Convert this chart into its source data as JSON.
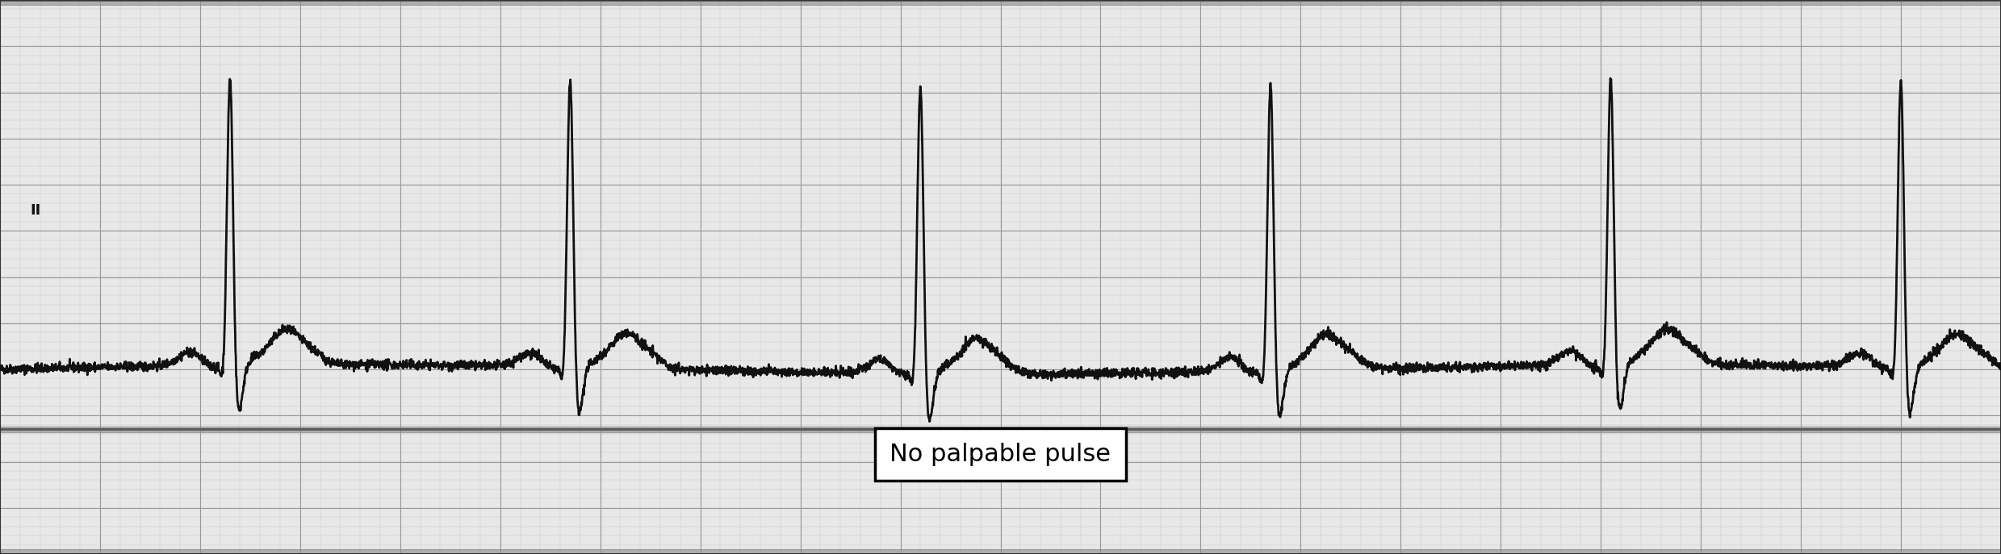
{
  "bg_color": "#e8e8e8",
  "grid_major_color": "#999999",
  "grid_minor_color": "#c8c8c8",
  "ecg_color": "#111111",
  "ecg_linewidth": 2.0,
  "baseline": 0.0,
  "label_text": "II",
  "annotation_text": "No palpable pulse",
  "figsize": [
    24.79,
    6.87
  ],
  "dpi": 100,
  "ylim": [
    -2.0,
    4.0
  ],
  "xlim": [
    0,
    10.0
  ],
  "beat_times": [
    1.15,
    2.85,
    4.6,
    6.35,
    8.05,
    9.5
  ],
  "r_amp": 3.2,
  "s_amp": -0.55,
  "t_amp": 0.38,
  "p_amp": 0.15,
  "noise_std": 0.025
}
